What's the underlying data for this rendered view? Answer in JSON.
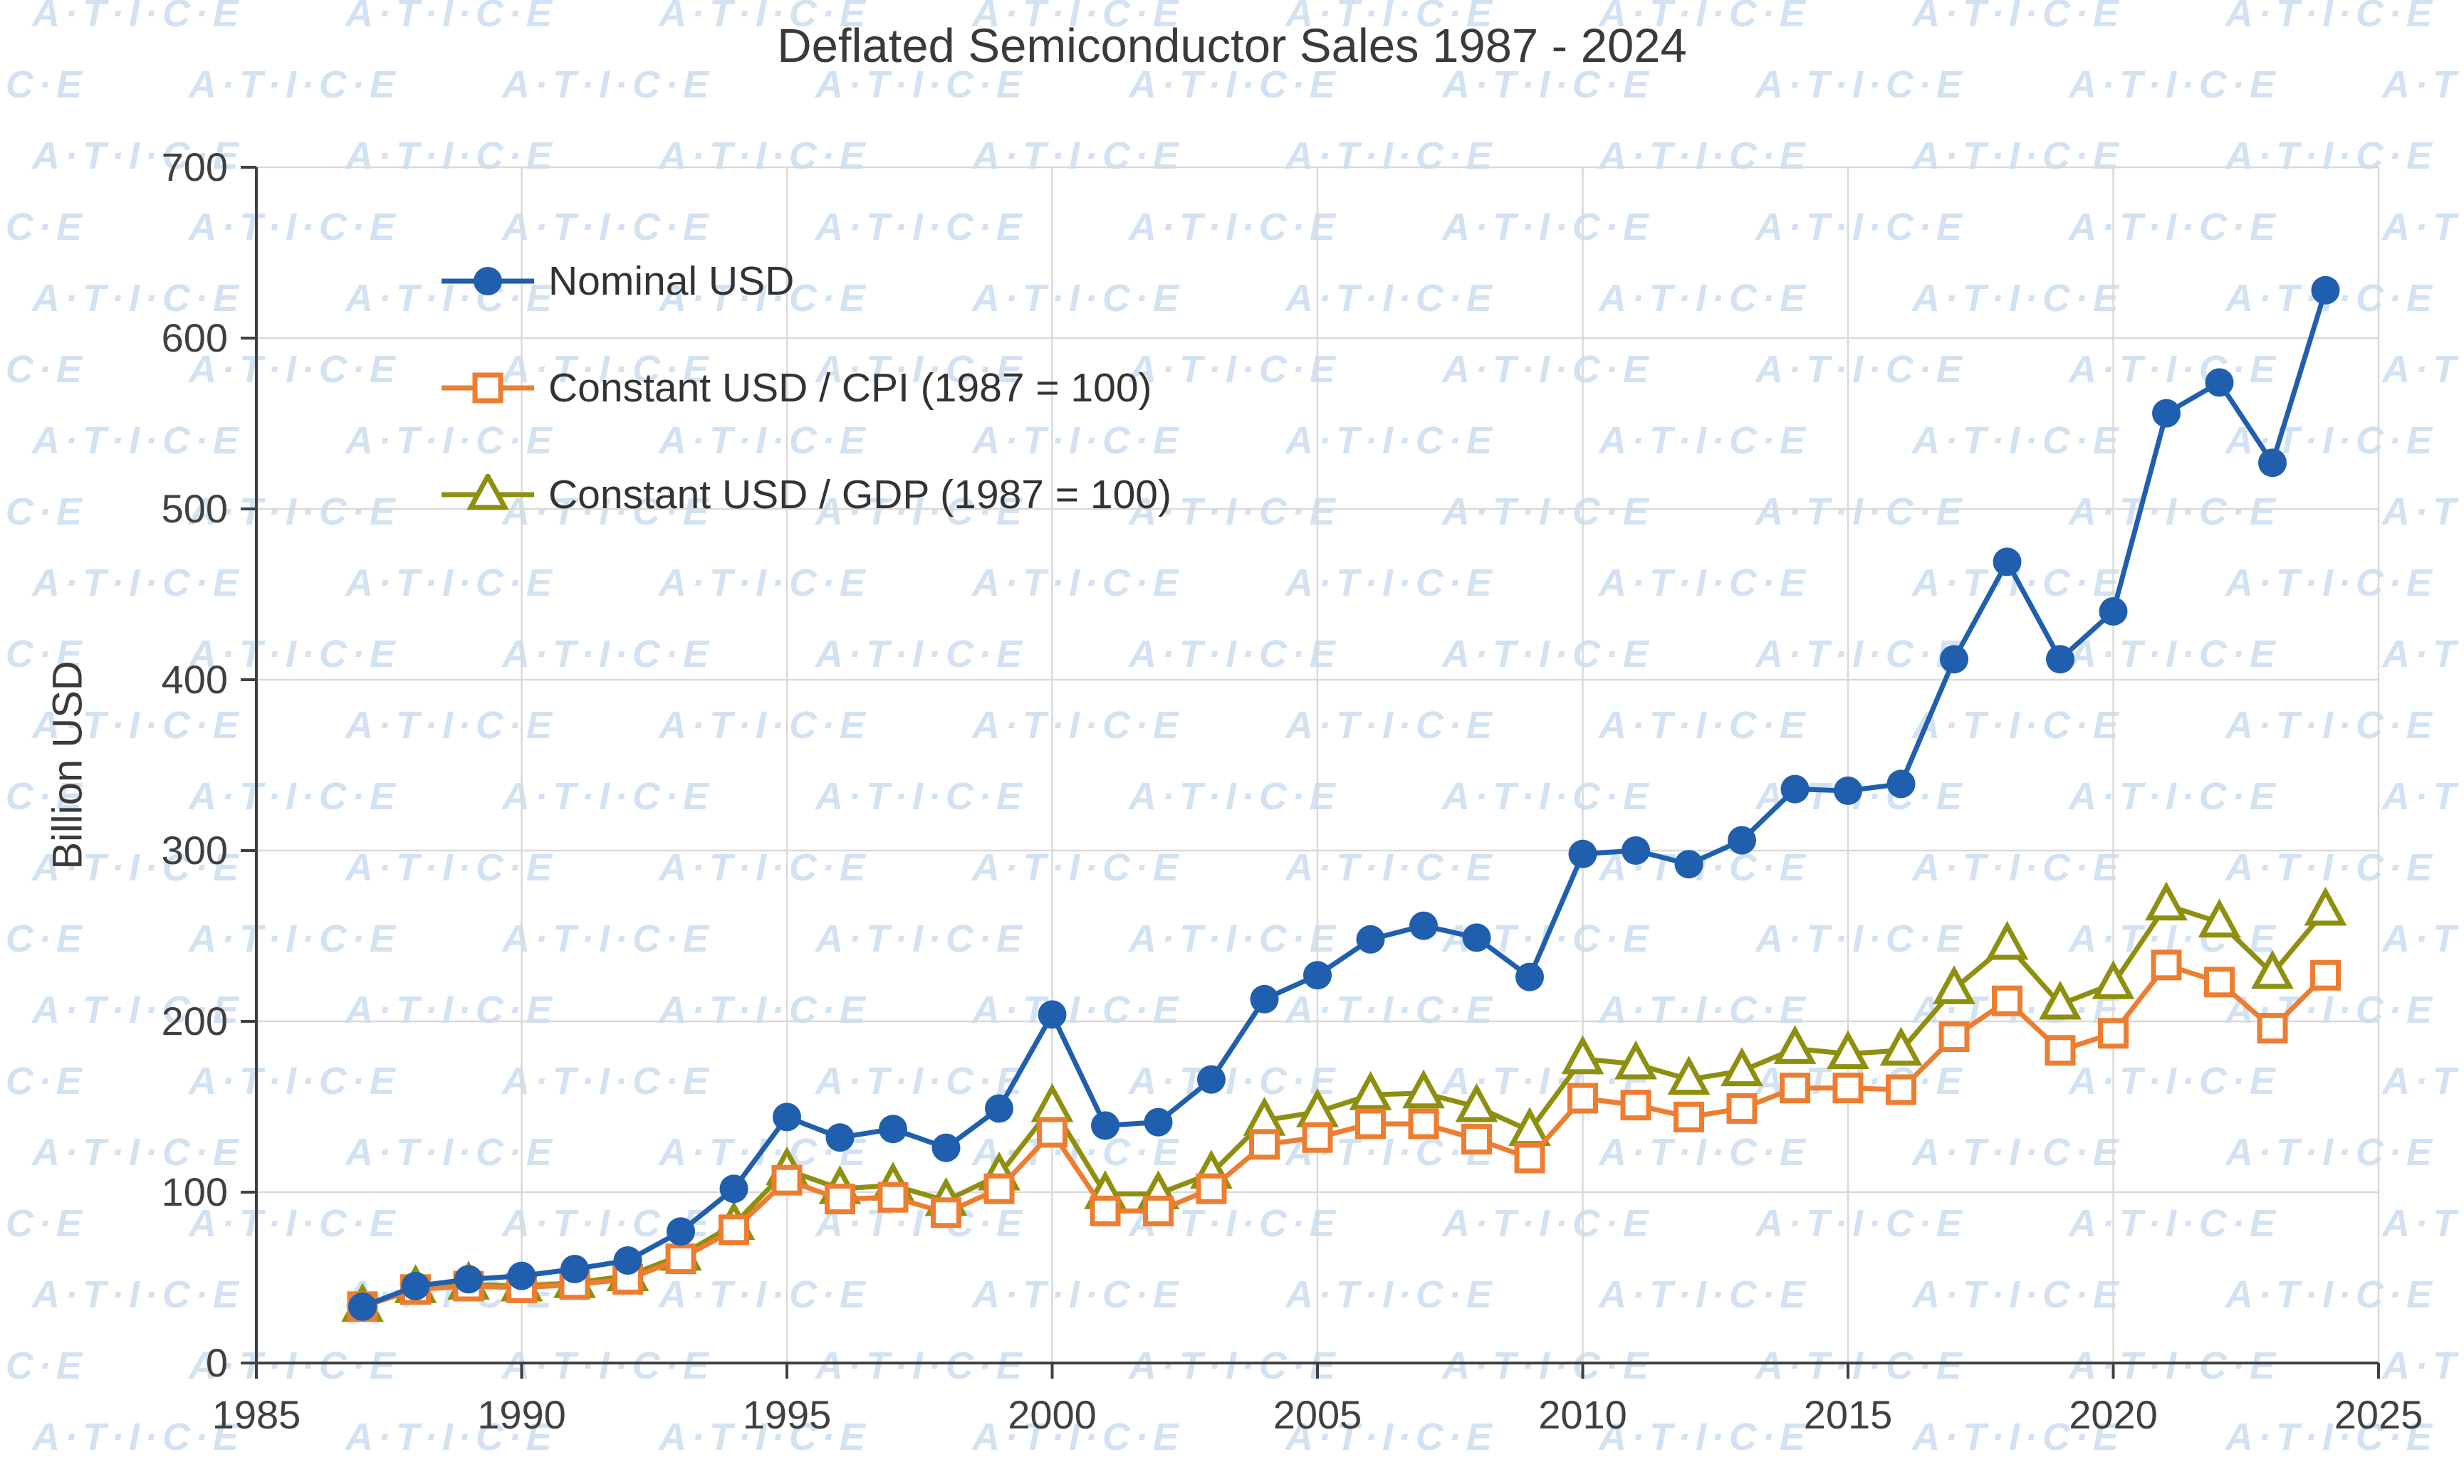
{
  "watermark": {
    "text": "A·T·I·C·E"
  },
  "colors": {
    "background": "#ffffff",
    "gridline": "#d9d9d9",
    "axis": "#404040",
    "text": "#404040",
    "title": "#3a3a3a",
    "watermark": "#d2e2f2"
  },
  "chart_data": {
    "type": "line",
    "title": "Deflated Semiconductor Sales 1987 - 2024",
    "xlabel": "",
    "ylabel": "Billion USD",
    "xlim": [
      1985,
      2025
    ],
    "ylim": [
      0,
      700
    ],
    "xticks": [
      1985,
      1990,
      1995,
      2000,
      2005,
      2010,
      2015,
      2020,
      2025
    ],
    "yticks": [
      0,
      100,
      200,
      300,
      400,
      500,
      600,
      700
    ],
    "grid": true,
    "legend_position": "inside-top-left",
    "x": [
      1987,
      1988,
      1989,
      1990,
      1991,
      1992,
      1993,
      1994,
      1995,
      1996,
      1997,
      1998,
      1999,
      2000,
      2001,
      2002,
      2003,
      2004,
      2005,
      2006,
      2007,
      2008,
      2009,
      2010,
      2011,
      2012,
      2013,
      2014,
      2015,
      2016,
      2017,
      2018,
      2019,
      2020,
      2021,
      2022,
      2023,
      2024
    ],
    "series": [
      {
        "id": "nominal",
        "name": "Nominal USD",
        "marker": "circle",
        "color": "#1f5fad",
        "values": [
          33,
          45,
          49,
          51,
          55,
          60,
          77,
          102,
          144,
          132,
          137,
          126,
          149,
          204,
          139,
          141,
          166,
          213,
          227,
          248,
          256,
          249,
          226,
          298,
          300,
          292,
          306,
          336,
          335,
          339,
          412,
          469,
          412,
          440,
          556,
          574,
          527,
          628
        ]
      },
      {
        "id": "cpi",
        "name": "Constant USD / CPI (1987 = 100)",
        "marker": "square",
        "color": "#ed7d31",
        "values": [
          33,
          43,
          45,
          44,
          46,
          49,
          61,
          78,
          107,
          96,
          97,
          88,
          102,
          135,
          89,
          89,
          102,
          128,
          132,
          140,
          140,
          131,
          120,
          155,
          151,
          144,
          149,
          161,
          161,
          160,
          191,
          212,
          183,
          193,
          233,
          223,
          196,
          227
        ]
      },
      {
        "id": "gdp",
        "name": "Constant USD / GDP (1987 = 100)",
        "marker": "triangle",
        "color": "#8f8f0f",
        "values": [
          33,
          44,
          46,
          45,
          47,
          51,
          63,
          81,
          113,
          102,
          104,
          95,
          110,
          150,
          99,
          99,
          111,
          142,
          147,
          157,
          158,
          150,
          136,
          178,
          175,
          166,
          171,
          184,
          181,
          183,
          219,
          245,
          210,
          222,
          268,
          258,
          228,
          265
        ]
      }
    ]
  }
}
